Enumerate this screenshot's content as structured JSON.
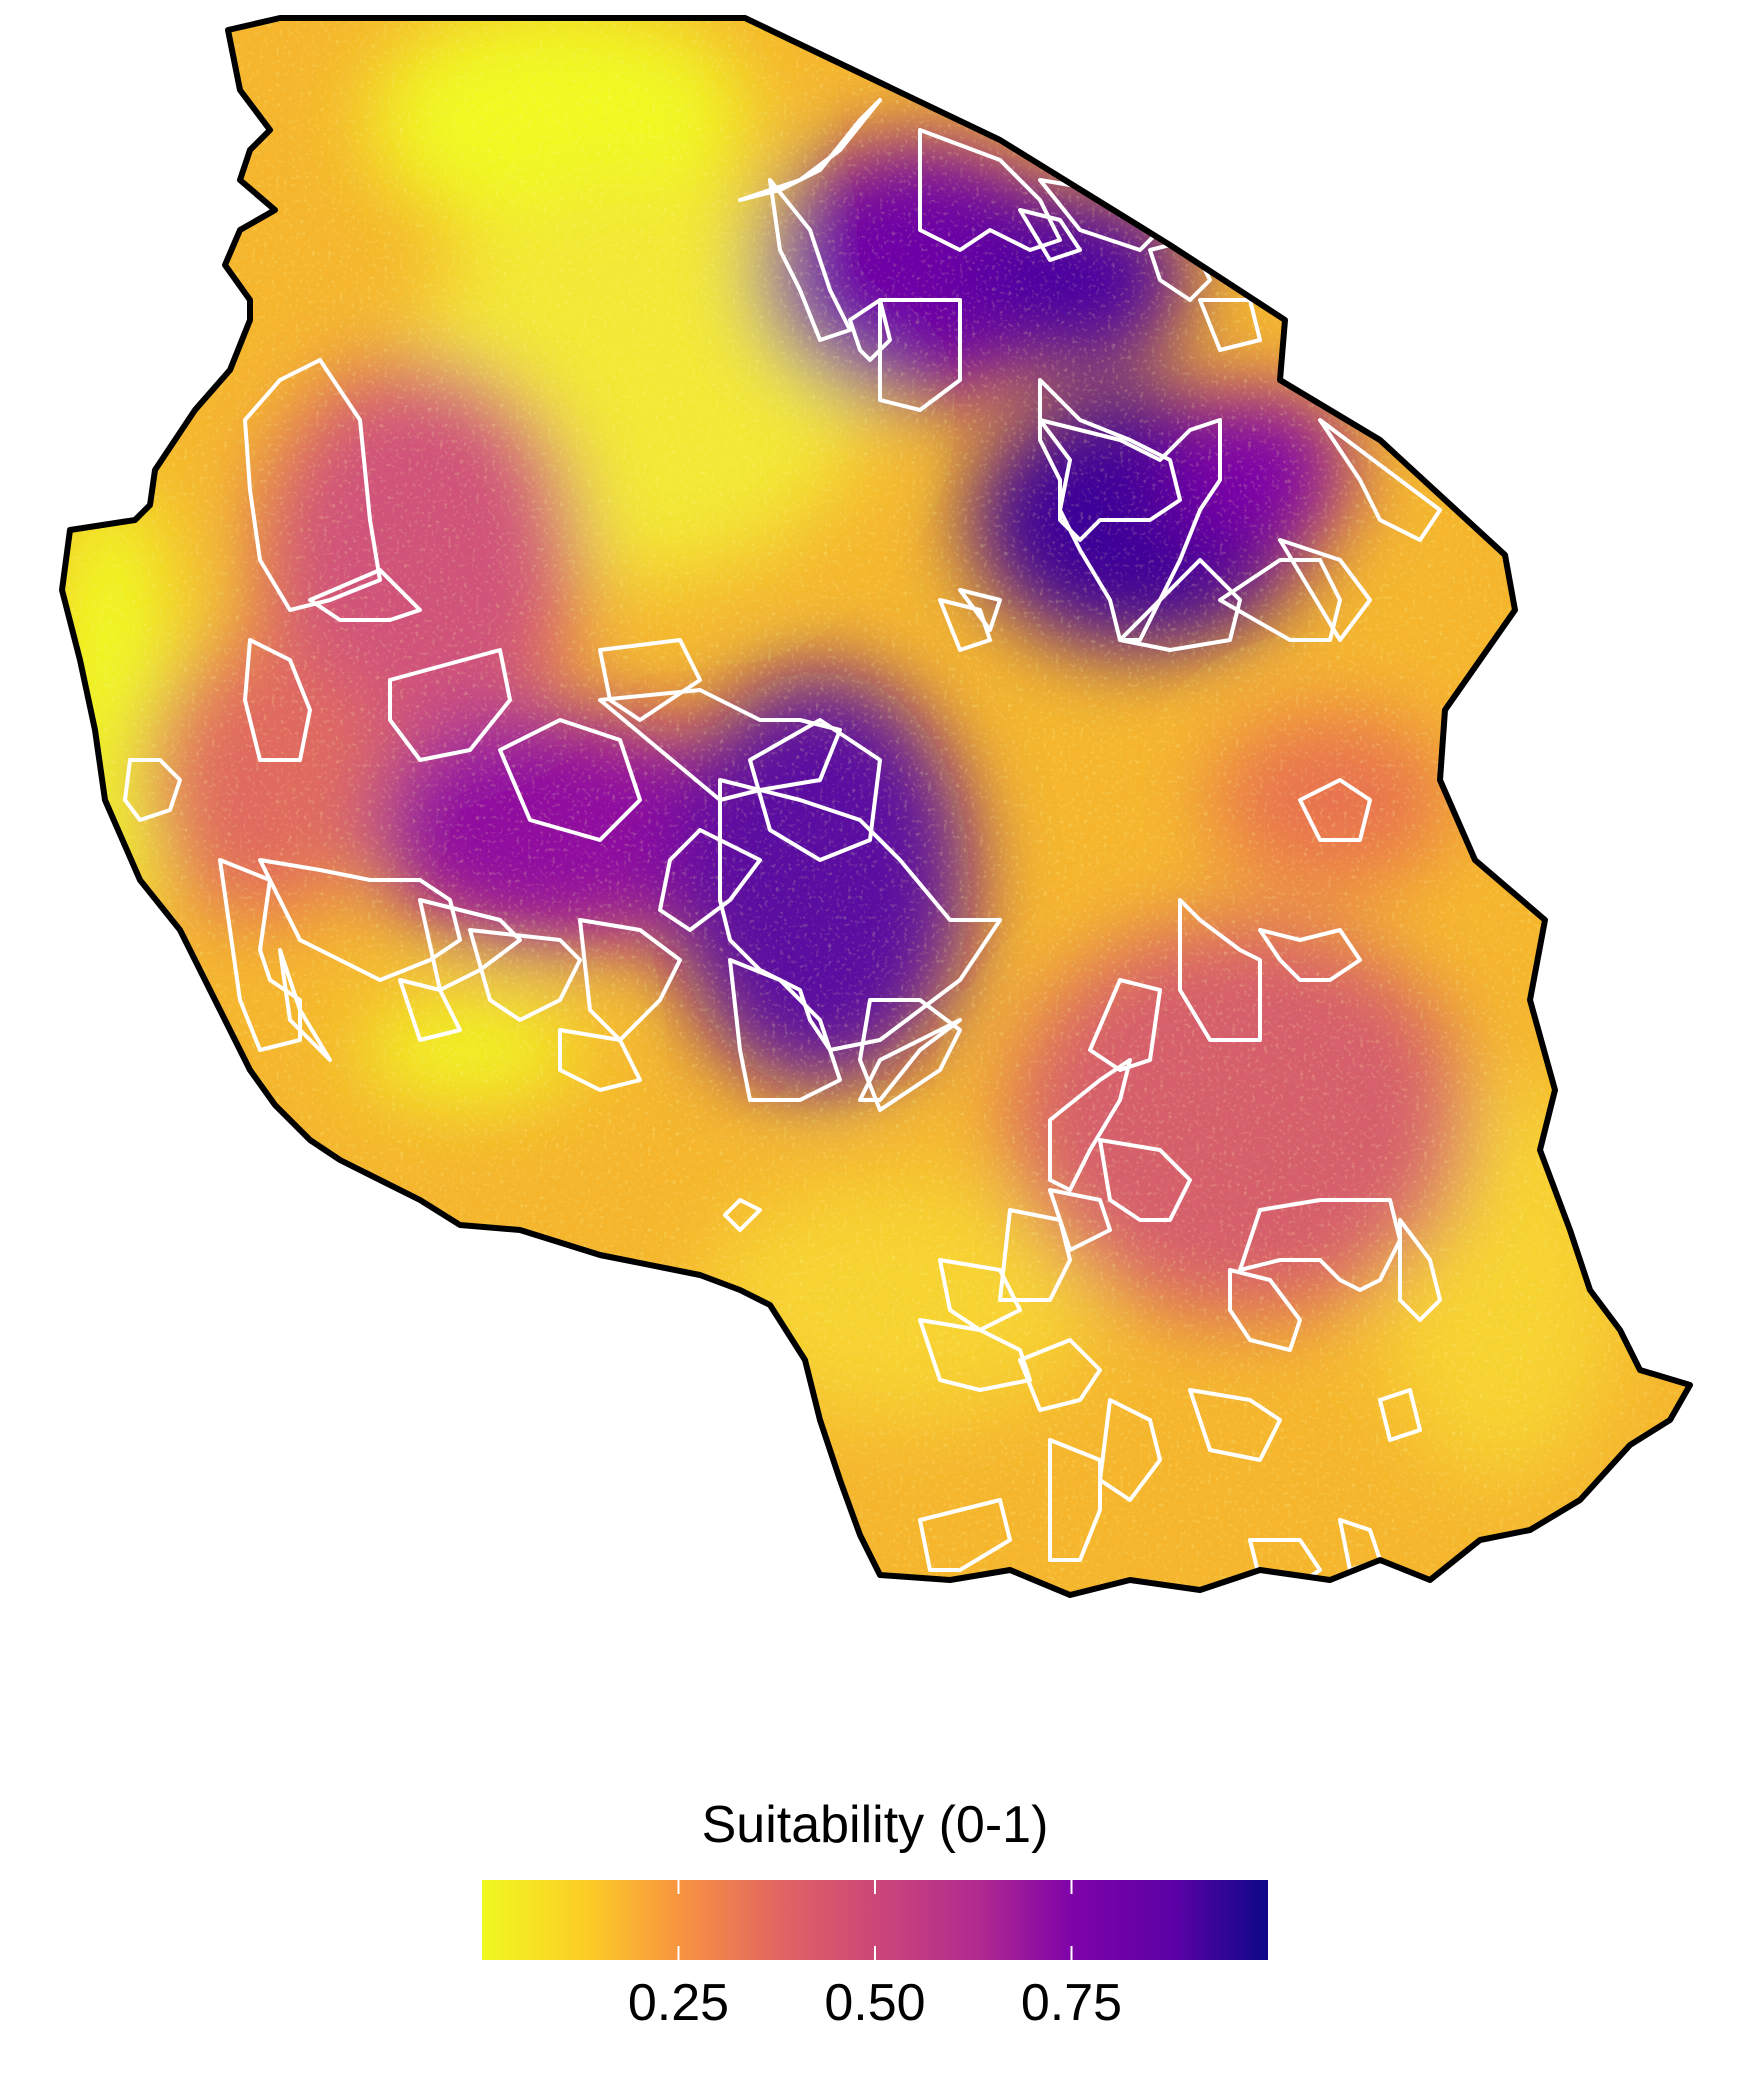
{
  "map": {
    "region": "Tanzania",
    "colormap": "plasma (reversed)",
    "colors": {
      "low": "#f0f921",
      "mid_low": "#f89540",
      "mid": "#cc4778",
      "mid_high": "#7e03a8",
      "high": "#0d0887",
      "boundary": "#000000",
      "protected_areas": "#ffffff"
    }
  },
  "legend": {
    "title": "Suitability (0-1)",
    "range": [
      0,
      1
    ],
    "ticks": [
      {
        "value": 0.25,
        "label": "0.25"
      },
      {
        "value": 0.5,
        "label": "0.50"
      },
      {
        "value": 0.75,
        "label": "0.75"
      }
    ]
  }
}
